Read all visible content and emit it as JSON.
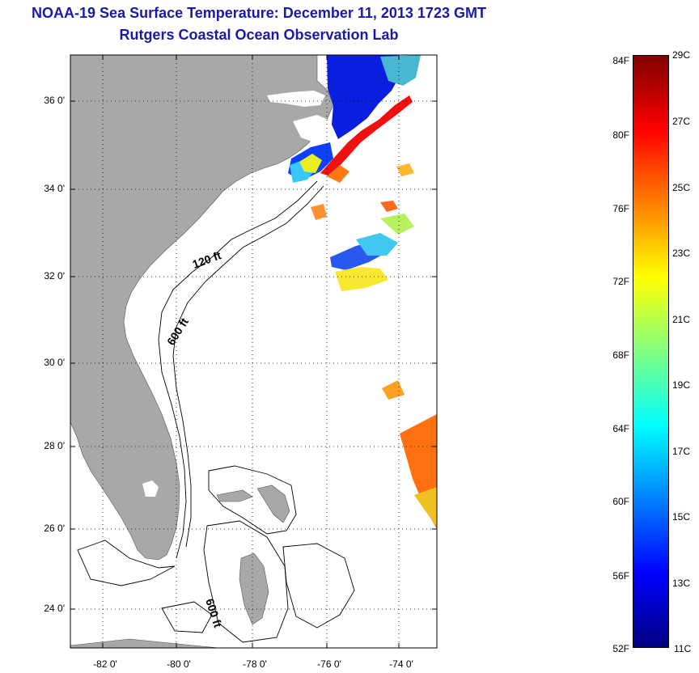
{
  "title": {
    "line1": "NOAA-19 Sea Surface Temperature:  December 11, 2013 1723 GMT",
    "line2": "Rutgers Coastal Ocean Observation Lab"
  },
  "map": {
    "lat_labels": [
      "36 0'",
      "34 0'",
      "32 0'",
      "30 0'",
      "28 0'",
      "26 0'",
      "24 0'"
    ],
    "lon_labels": [
      "-82 0'",
      "-80 0'",
      "-78 0'",
      "-76 0'",
      "-74 0'"
    ],
    "contour_labels": {
      "c120": "120 ft",
      "c600a": "600 ft",
      "c600b": "600 ft"
    },
    "colors": {
      "land": "#a8a8a8",
      "ocean": "#ffffff",
      "grid": "#000000"
    }
  },
  "colorbar": {
    "fahrenheit": [
      "84F",
      "80F",
      "76F",
      "72F",
      "68F",
      "64F",
      "60F",
      "56F",
      "52F"
    ],
    "celsius": [
      "29C",
      "27C",
      "25C",
      "23C",
      "21C",
      "19C",
      "17C",
      "15C",
      "13C",
      "11C"
    ],
    "colors": [
      "#800000",
      "#ff0000",
      "#ff8000",
      "#ffff00",
      "#80ff80",
      "#00ffff",
      "#0080ff",
      "#0000ff",
      "#000080"
    ]
  }
}
